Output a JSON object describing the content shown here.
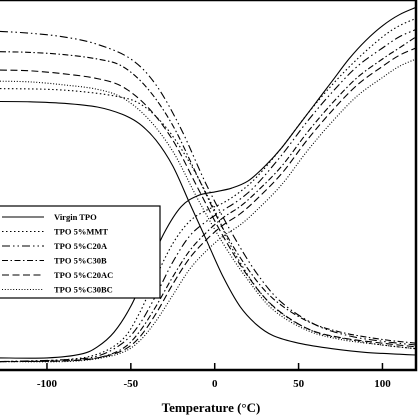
{
  "chart_data": {
    "type": "line",
    "xlabel": "Temperature (°C)",
    "xlim": [
      -128,
      120
    ],
    "ylim": [
      0,
      1
    ],
    "ticks": [
      {
        "label": "-100",
        "value": -100
      },
      {
        "label": "-50",
        "value": -50
      },
      {
        "label": "0",
        "value": 0
      },
      {
        "label": "50",
        "value": 50
      },
      {
        "label": "100",
        "value": 100
      }
    ],
    "legend_position": "left-middle",
    "series": [
      {
        "name": "Virgin TPO",
        "dash": "",
        "modulus": {
          "x": [
            -128,
            -110,
            -90,
            -70,
            -55,
            -45,
            -35,
            -25,
            -15,
            -5,
            5,
            15,
            25,
            35,
            50,
            70,
            90,
            110,
            120
          ],
          "y": [
            0.725,
            0.724,
            0.72,
            0.71,
            0.69,
            0.665,
            0.62,
            0.55,
            0.45,
            0.35,
            0.25,
            0.17,
            0.12,
            0.09,
            0.07,
            0.055,
            0.045,
            0.04,
            0.038
          ]
        },
        "tan_delta": {
          "x": [
            -128,
            -100,
            -80,
            -70,
            -60,
            -50,
            -40,
            -30,
            -20,
            -10,
            0,
            10,
            20,
            30,
            40,
            50,
            60,
            70,
            80,
            90,
            100,
            110,
            120
          ],
          "y": [
            0.03,
            0.03,
            0.04,
            0.06,
            0.1,
            0.17,
            0.27,
            0.37,
            0.44,
            0.47,
            0.48,
            0.49,
            0.51,
            0.55,
            0.6,
            0.66,
            0.72,
            0.78,
            0.84,
            0.89,
            0.93,
            0.96,
            0.98
          ]
        }
      },
      {
        "name": "TPO 5%MMT",
        "dash": "1.5 2.5",
        "modulus": {
          "x": [
            -128,
            -100,
            -80,
            -60,
            -45,
            -30,
            -15,
            0,
            10,
            25,
            40,
            60,
            80,
            100,
            120
          ],
          "y": [
            0.76,
            0.758,
            0.752,
            0.74,
            0.72,
            0.66,
            0.56,
            0.43,
            0.33,
            0.22,
            0.15,
            0.1,
            0.08,
            0.065,
            0.055
          ]
        },
        "tan_delta": {
          "x": [
            -128,
            -90,
            -70,
            -55,
            -45,
            -35,
            -25,
            -15,
            -5,
            5,
            15,
            25,
            40,
            55,
            70,
            85,
            100,
            110,
            120
          ],
          "y": [
            0.02,
            0.025,
            0.04,
            0.08,
            0.15,
            0.25,
            0.34,
            0.4,
            0.43,
            0.45,
            0.48,
            0.52,
            0.6,
            0.69,
            0.77,
            0.84,
            0.9,
            0.93,
            0.95
          ]
        }
      },
      {
        "name": "TPO 5%C20A",
        "dash": "8 3 1.5 3 1.5 3",
        "modulus": {
          "x": [
            -128,
            -110,
            -90,
            -70,
            -50,
            -35,
            -20,
            -5,
            10,
            25,
            40,
            60,
            80,
            100,
            120
          ],
          "y": [
            0.915,
            0.91,
            0.9,
            0.88,
            0.84,
            0.77,
            0.65,
            0.5,
            0.37,
            0.26,
            0.18,
            0.12,
            0.09,
            0.075,
            0.065
          ]
        },
        "tan_delta": {
          "x": [
            -128,
            -90,
            -70,
            -55,
            -45,
            -35,
            -25,
            -15,
            -5,
            5,
            15,
            25,
            40,
            55,
            70,
            85,
            100,
            110,
            120
          ],
          "y": [
            0.02,
            0.025,
            0.035,
            0.07,
            0.12,
            0.2,
            0.29,
            0.36,
            0.4,
            0.43,
            0.46,
            0.5,
            0.58,
            0.67,
            0.75,
            0.82,
            0.87,
            0.9,
            0.92
          ]
        }
      },
      {
        "name": "TPO 5%C30B",
        "dash": "6 2.5 1.5 2.5",
        "modulus": {
          "x": [
            -128,
            -110,
            -90,
            -70,
            -55,
            -40,
            -25,
            -10,
            5,
            20,
            35,
            55,
            75,
            100,
            120
          ],
          "y": [
            0.86,
            0.858,
            0.852,
            0.84,
            0.82,
            0.76,
            0.66,
            0.52,
            0.38,
            0.27,
            0.19,
            0.13,
            0.1,
            0.08,
            0.07
          ]
        },
        "tan_delta": {
          "x": [
            -128,
            -90,
            -70,
            -55,
            -45,
            -35,
            -25,
            -15,
            -5,
            5,
            15,
            25,
            40,
            55,
            70,
            85,
            100,
            110,
            120
          ],
          "y": [
            0.02,
            0.022,
            0.03,
            0.055,
            0.1,
            0.17,
            0.25,
            0.32,
            0.37,
            0.41,
            0.44,
            0.48,
            0.55,
            0.64,
            0.72,
            0.79,
            0.84,
            0.87,
            0.9
          ]
        }
      },
      {
        "name": "TPO 5%C20AC",
        "dash": "7 3.5",
        "modulus": {
          "x": [
            -128,
            -110,
            -90,
            -70,
            -55,
            -40,
            -25,
            -10,
            5,
            20,
            35,
            55,
            75,
            100,
            120
          ],
          "y": [
            0.81,
            0.808,
            0.8,
            0.787,
            0.765,
            0.71,
            0.62,
            0.49,
            0.36,
            0.25,
            0.17,
            0.11,
            0.085,
            0.07,
            0.06
          ]
        },
        "tan_delta": {
          "x": [
            -128,
            -90,
            -70,
            -55,
            -45,
            -35,
            -25,
            -15,
            -5,
            5,
            15,
            25,
            40,
            55,
            70,
            85,
            100,
            110,
            120
          ],
          "y": [
            0.02,
            0.022,
            0.03,
            0.05,
            0.085,
            0.15,
            0.23,
            0.3,
            0.35,
            0.39,
            0.42,
            0.46,
            0.53,
            0.62,
            0.7,
            0.77,
            0.82,
            0.85,
            0.87
          ]
        }
      },
      {
        "name": "TPO 5%C30BC",
        "dash": "1 1.8",
        "modulus": {
          "x": [
            -128,
            -110,
            -90,
            -70,
            -55,
            -40,
            -25,
            -10,
            5,
            20,
            35,
            55,
            75,
            100,
            120
          ],
          "y": [
            0.78,
            0.778,
            0.77,
            0.758,
            0.735,
            0.68,
            0.59,
            0.46,
            0.34,
            0.24,
            0.16,
            0.105,
            0.08,
            0.065,
            0.055
          ]
        },
        "tan_delta": {
          "x": [
            -128,
            -90,
            -70,
            -55,
            -45,
            -35,
            -25,
            -15,
            -5,
            5,
            15,
            25,
            40,
            55,
            70,
            85,
            100,
            110,
            120
          ],
          "y": [
            0.02,
            0.02,
            0.028,
            0.045,
            0.075,
            0.13,
            0.2,
            0.27,
            0.32,
            0.36,
            0.39,
            0.43,
            0.5,
            0.59,
            0.67,
            0.74,
            0.79,
            0.82,
            0.84
          ]
        }
      }
    ]
  }
}
